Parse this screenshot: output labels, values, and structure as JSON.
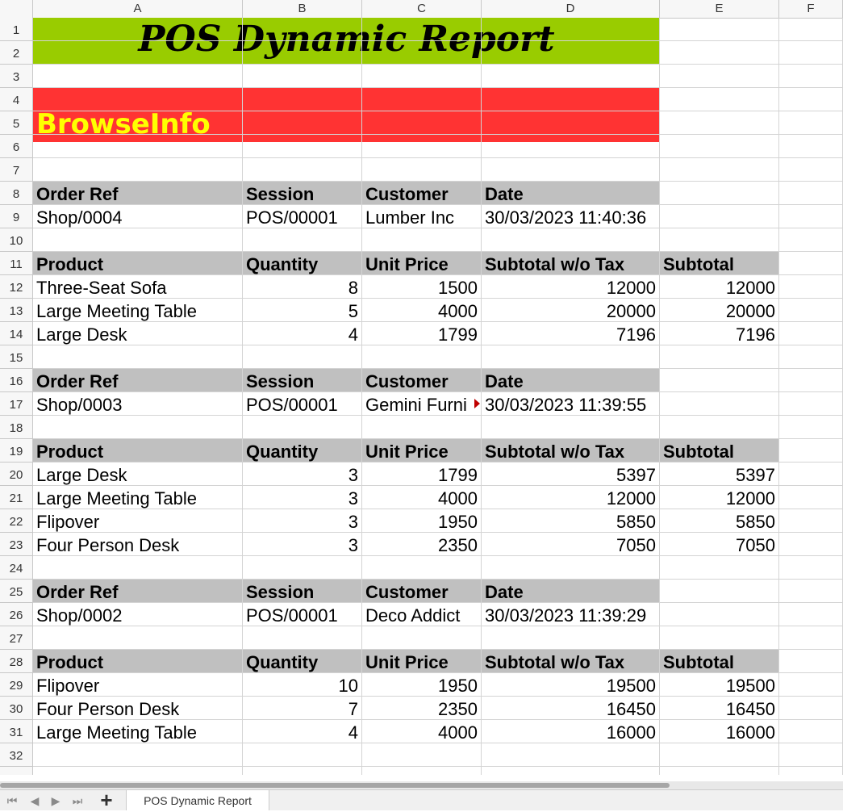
{
  "columns": [
    "A",
    "B",
    "C",
    "D",
    "E",
    "F"
  ],
  "rows": [
    "1",
    "2",
    "3",
    "4",
    "5",
    "6",
    "7",
    "8",
    "9",
    "10",
    "11",
    "12",
    "13",
    "14",
    "15",
    "16",
    "17",
    "18",
    "19",
    "20",
    "21",
    "22",
    "23",
    "24",
    "25",
    "26",
    "27",
    "28",
    "29",
    "30",
    "31",
    "32"
  ],
  "title": "POS Dynamic Report",
  "brand": "BrowseInfo",
  "order_headers": [
    "Order Ref",
    "Session",
    "Customer",
    "Date"
  ],
  "line_headers": [
    "Product",
    "Quantity",
    "Unit Price",
    "Subtotal w/o Tax",
    "Subtotal"
  ],
  "orders": [
    {
      "ref": "Shop/0004",
      "session": "POS/00001",
      "customer": "Lumber Inc",
      "date": "30/03/2023 11:40:36",
      "lines": [
        {
          "product": "Three-Seat Sofa",
          "qty": "8",
          "price": "1500",
          "subtotal_wo_tax": "12000",
          "subtotal": "12000"
        },
        {
          "product": "Large Meeting Table",
          "qty": "5",
          "price": "4000",
          "subtotal_wo_tax": "20000",
          "subtotal": "20000"
        },
        {
          "product": "Large Desk",
          "qty": "4",
          "price": "1799",
          "subtotal_wo_tax": "7196",
          "subtotal": "7196"
        }
      ]
    },
    {
      "ref": "Shop/0003",
      "session": "POS/00001",
      "customer": "Gemini Furni",
      "date": "30/03/2023 11:39:55",
      "lines": [
        {
          "product": "Large Desk",
          "qty": "3",
          "price": "1799",
          "subtotal_wo_tax": "5397",
          "subtotal": "5397"
        },
        {
          "product": "Large Meeting Table",
          "qty": "3",
          "price": "4000",
          "subtotal_wo_tax": "12000",
          "subtotal": "12000"
        },
        {
          "product": "Flipover",
          "qty": "3",
          "price": "1950",
          "subtotal_wo_tax": "5850",
          "subtotal": "5850"
        },
        {
          "product": "Four Person Desk",
          "qty": "3",
          "price": "2350",
          "subtotal_wo_tax": "7050",
          "subtotal": "7050"
        }
      ]
    },
    {
      "ref": "Shop/0002",
      "session": "POS/00001",
      "customer": "Deco Addict",
      "date": "30/03/2023 11:39:29",
      "lines": [
        {
          "product": "Flipover",
          "qty": "10",
          "price": "1950",
          "subtotal_wo_tax": "19500",
          "subtotal": "19500"
        },
        {
          "product": "Four Person Desk",
          "qty": "7",
          "price": "2350",
          "subtotal_wo_tax": "16450",
          "subtotal": "16450"
        },
        {
          "product": "Large Meeting Table",
          "qty": "4",
          "price": "4000",
          "subtotal_wo_tax": "16000",
          "subtotal": "16000"
        }
      ]
    }
  ],
  "sheet_tab": "POS Dynamic Report",
  "colors": {
    "title_bg": "#99cc00",
    "brand_bg": "#ff3333",
    "brand_text": "#ffff00",
    "header_bg": "#c0c0c0"
  }
}
